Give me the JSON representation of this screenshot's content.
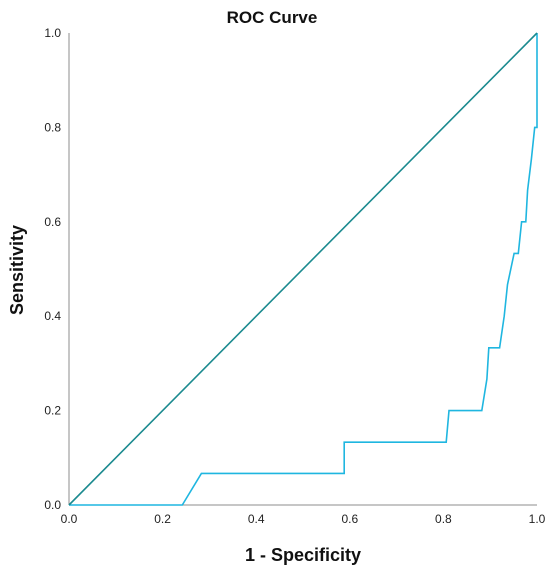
{
  "chart_data": {
    "type": "line",
    "title": "ROC Curve",
    "xlabel": "1 - Specificity",
    "ylabel": "Sensitivity",
    "xlim": [
      0.0,
      1.0
    ],
    "ylim": [
      0.0,
      1.0
    ],
    "x_ticks": [
      "0.0",
      "0.2",
      "0.4",
      "0.6",
      "0.8",
      "1.0"
    ],
    "y_ticks": [
      "0.0",
      "0.2",
      "0.4",
      "0.6",
      "0.8",
      "1.0"
    ],
    "grid": false,
    "series": [
      {
        "role": "roc-curve",
        "color": "#1fb6e0",
        "points": [
          [
            0.0,
            0.0
          ],
          [
            0.242,
            0.0
          ],
          [
            0.283,
            0.067
          ],
          [
            0.588,
            0.067
          ],
          [
            0.588,
            0.133
          ],
          [
            0.806,
            0.133
          ],
          [
            0.812,
            0.2
          ],
          [
            0.882,
            0.2
          ],
          [
            0.893,
            0.267
          ],
          [
            0.897,
            0.333
          ],
          [
            0.92,
            0.333
          ],
          [
            0.93,
            0.4
          ],
          [
            0.937,
            0.467
          ],
          [
            0.951,
            0.533
          ],
          [
            0.96,
            0.533
          ],
          [
            0.967,
            0.6
          ],
          [
            0.976,
            0.6
          ],
          [
            0.98,
            0.667
          ],
          [
            0.988,
            0.733
          ],
          [
            0.995,
            0.8
          ],
          [
            1.0,
            0.8
          ],
          [
            1.0,
            1.0
          ]
        ]
      },
      {
        "role": "reference-line",
        "color": "#1b8a8f",
        "points": [
          [
            0.0,
            0.0
          ],
          [
            1.0,
            1.0
          ]
        ]
      }
    ]
  }
}
